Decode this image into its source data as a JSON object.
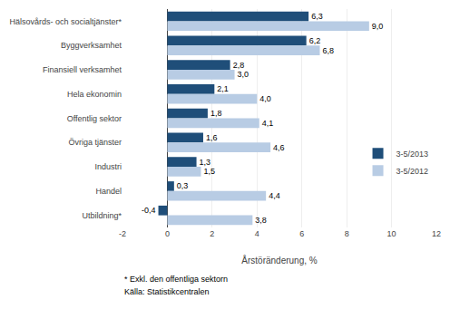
{
  "chart_data": {
    "type": "bar",
    "orientation": "horizontal",
    "categories": [
      "Hälsovårds- och socialtjänster*",
      "Byggverksamhet",
      "Finansiell verksamhet",
      "Hela ekonomin",
      "Offentlig sektor",
      "Övriga tjänster",
      "Industri",
      "Handel",
      "Utbildning*"
    ],
    "series": [
      {
        "name": "3-5/2013",
        "color": "#1F4E79",
        "values": [
          6.3,
          6.2,
          2.8,
          2.1,
          1.8,
          1.6,
          1.3,
          0.3,
          -0.4
        ],
        "value_labels": [
          "6,3",
          "6,2",
          "2,8",
          "2,1",
          "1,8",
          "1,6",
          "1,3",
          "0,3",
          "-0,4"
        ]
      },
      {
        "name": "3-5/2012",
        "color": "#B8CCE4",
        "values": [
          9.0,
          6.8,
          3.0,
          4.0,
          4.1,
          4.6,
          1.5,
          4.4,
          3.8
        ],
        "value_labels": [
          "9,0",
          "6,8",
          "3,0",
          "4,0",
          "4,1",
          "4,6",
          "1,5",
          "4,4",
          "3,8"
        ]
      }
    ],
    "xlabel": "Årstöränderung, %",
    "xlim": [
      -2,
      12
    ],
    "xticks": [
      -2,
      0,
      2,
      4,
      6,
      8,
      10,
      12
    ],
    "grid": true,
    "legend": "right",
    "data_labels": true,
    "annotations": [
      "* Exkl. den offentliga sektorn",
      "Källa: Statistikcentralen"
    ]
  }
}
